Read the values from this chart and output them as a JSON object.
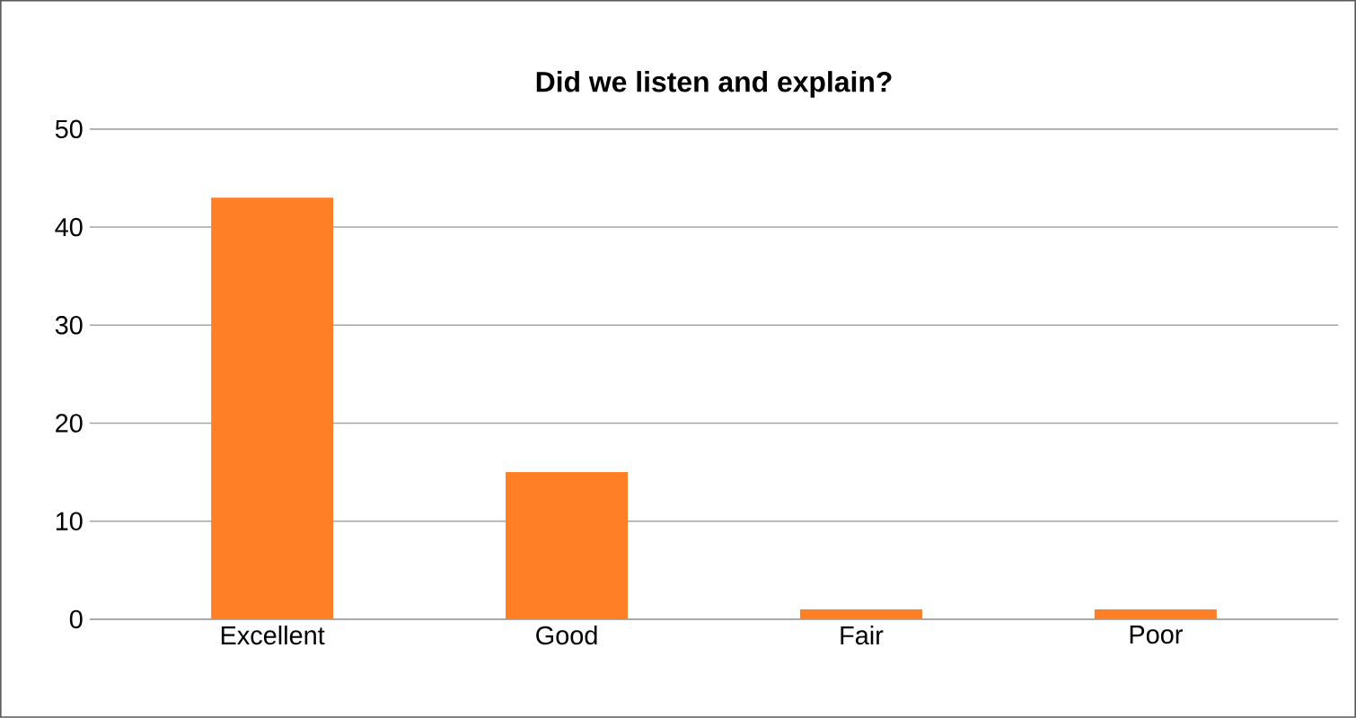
{
  "chart_data": {
    "type": "bar",
    "title": "Did we listen and explain?",
    "categories": [
      "Excellent",
      "Good",
      "Fair",
      "Poor"
    ],
    "values": [
      43,
      15,
      1,
      1
    ],
    "color": "#ff7f27",
    "ylim": [
      0,
      50
    ],
    "yticks": [
      0,
      10,
      20,
      30,
      40,
      50
    ],
    "grid": "y"
  }
}
